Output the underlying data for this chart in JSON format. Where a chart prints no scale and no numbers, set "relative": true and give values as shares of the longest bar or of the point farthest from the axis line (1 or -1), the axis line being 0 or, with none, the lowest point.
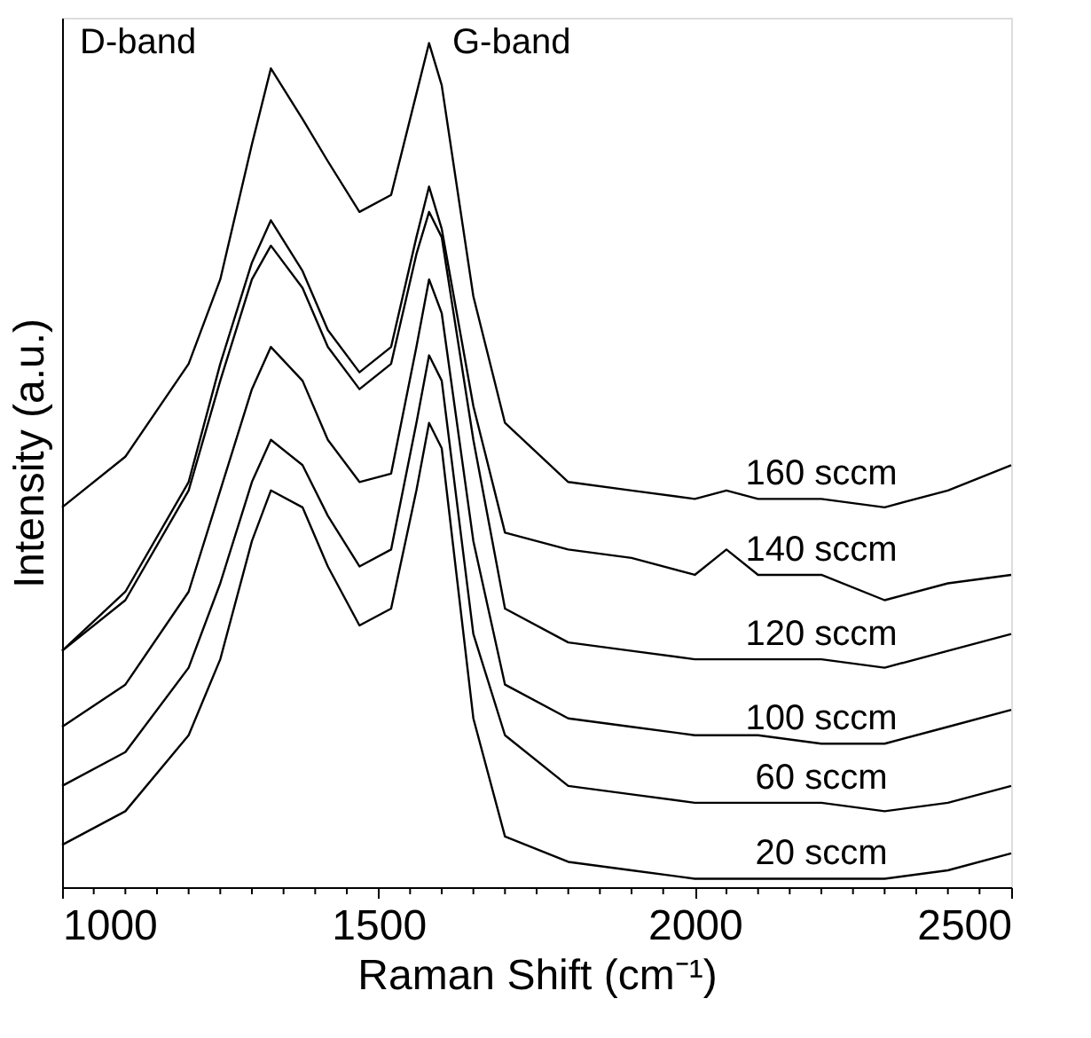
{
  "chart_data": {
    "type": "line",
    "relative": true,
    "xlabel": "Raman Shift (cm⁻¹)",
    "ylabel": "Intensity (a.u.)",
    "x": [
      1000,
      1100,
      1200,
      1250,
      1300,
      1330,
      1380,
      1420,
      1470,
      1520,
      1560,
      1580,
      1600,
      1650,
      1700,
      1800,
      1900,
      2000,
      2050,
      2100,
      2200,
      2300,
      2400,
      2500
    ],
    "xlim": [
      1000,
      2500
    ],
    "xticks": [
      1000,
      {
        "value": 1050,
        "label": null
      },
      {
        "value": 1100,
        "label": null
      },
      {
        "value": 1150,
        "label": null
      },
      {
        "value": 1200,
        "label": null
      },
      {
        "value": 1250,
        "label": null
      },
      {
        "value": 1300,
        "label": null
      },
      {
        "value": 1350,
        "label": null
      },
      {
        "value": 1400,
        "label": null
      },
      {
        "value": 1450,
        "label": null
      },
      1500,
      {
        "value": 1550,
        "label": null
      },
      {
        "value": 1600,
        "label": null
      },
      {
        "value": 1650,
        "label": null
      },
      {
        "value": 1700,
        "label": null
      },
      {
        "value": 1750,
        "label": null
      },
      {
        "value": 1800,
        "label": null
      },
      {
        "value": 1850,
        "label": null
      },
      {
        "value": 1900,
        "label": null
      },
      {
        "value": 1950,
        "label": null
      },
      2000,
      {
        "value": 2050,
        "label": null
      },
      {
        "value": 2100,
        "label": null
      },
      {
        "value": 2150,
        "label": null
      },
      {
        "value": 2200,
        "label": null
      },
      {
        "value": 2250,
        "label": null
      },
      {
        "value": 2300,
        "label": null
      },
      {
        "value": 2350,
        "label": null
      },
      {
        "value": 2400,
        "label": null
      },
      {
        "value": 2450,
        "label": null
      },
      2500
    ],
    "grid": false,
    "legend": false,
    "marker": "none",
    "line_style": "solid",
    "series": [
      {
        "name": "160 sccm",
        "color": "#000000",
        "values": [
          0.45,
          0.51,
          0.62,
          0.72,
          0.88,
          0.97,
          0.91,
          0.86,
          0.8,
          0.82,
          0.94,
          1.0,
          0.95,
          0.7,
          0.55,
          0.48,
          0.47,
          0.46,
          0.47,
          0.46,
          0.46,
          0.45,
          0.47,
          0.5
        ]
      },
      {
        "name": "140 sccm",
        "color": "#000000",
        "values": [
          0.28,
          0.35,
          0.48,
          0.62,
          0.74,
          0.79,
          0.73,
          0.66,
          0.61,
          0.64,
          0.77,
          0.83,
          0.78,
          0.57,
          0.42,
          0.4,
          0.39,
          0.37,
          0.4,
          0.37,
          0.37,
          0.34,
          0.36,
          0.37
        ]
      },
      {
        "name": "120 sccm",
        "color": "#000000",
        "values": [
          0.28,
          0.34,
          0.47,
          0.6,
          0.72,
          0.76,
          0.71,
          0.64,
          0.59,
          0.62,
          0.75,
          0.8,
          0.77,
          0.53,
          0.33,
          0.29,
          0.28,
          0.27,
          0.27,
          0.27,
          0.27,
          0.26,
          0.28,
          0.3
        ]
      },
      {
        "name": "100 sccm",
        "color": "#000000",
        "values": [
          0.19,
          0.24,
          0.35,
          0.47,
          0.59,
          0.64,
          0.6,
          0.53,
          0.48,
          0.49,
          0.64,
          0.72,
          0.68,
          0.41,
          0.24,
          0.2,
          0.19,
          0.18,
          0.18,
          0.18,
          0.17,
          0.17,
          0.19,
          0.21
        ]
      },
      {
        "name": "60 sccm",
        "color": "#000000",
        "values": [
          0.12,
          0.16,
          0.26,
          0.36,
          0.48,
          0.53,
          0.5,
          0.44,
          0.38,
          0.4,
          0.55,
          0.63,
          0.6,
          0.3,
          0.18,
          0.12,
          0.11,
          0.1,
          0.1,
          0.1,
          0.1,
          0.09,
          0.1,
          0.12
        ]
      },
      {
        "name": "20 sccm",
        "color": "#000000",
        "values": [
          0.05,
          0.09,
          0.18,
          0.27,
          0.41,
          0.47,
          0.45,
          0.38,
          0.31,
          0.33,
          0.47,
          0.55,
          0.52,
          0.2,
          0.06,
          0.03,
          0.02,
          0.01,
          0.01,
          0.01,
          0.01,
          0.01,
          0.02,
          0.04
        ]
      }
    ],
    "annotations": [
      "D-band",
      "G-band"
    ]
  }
}
